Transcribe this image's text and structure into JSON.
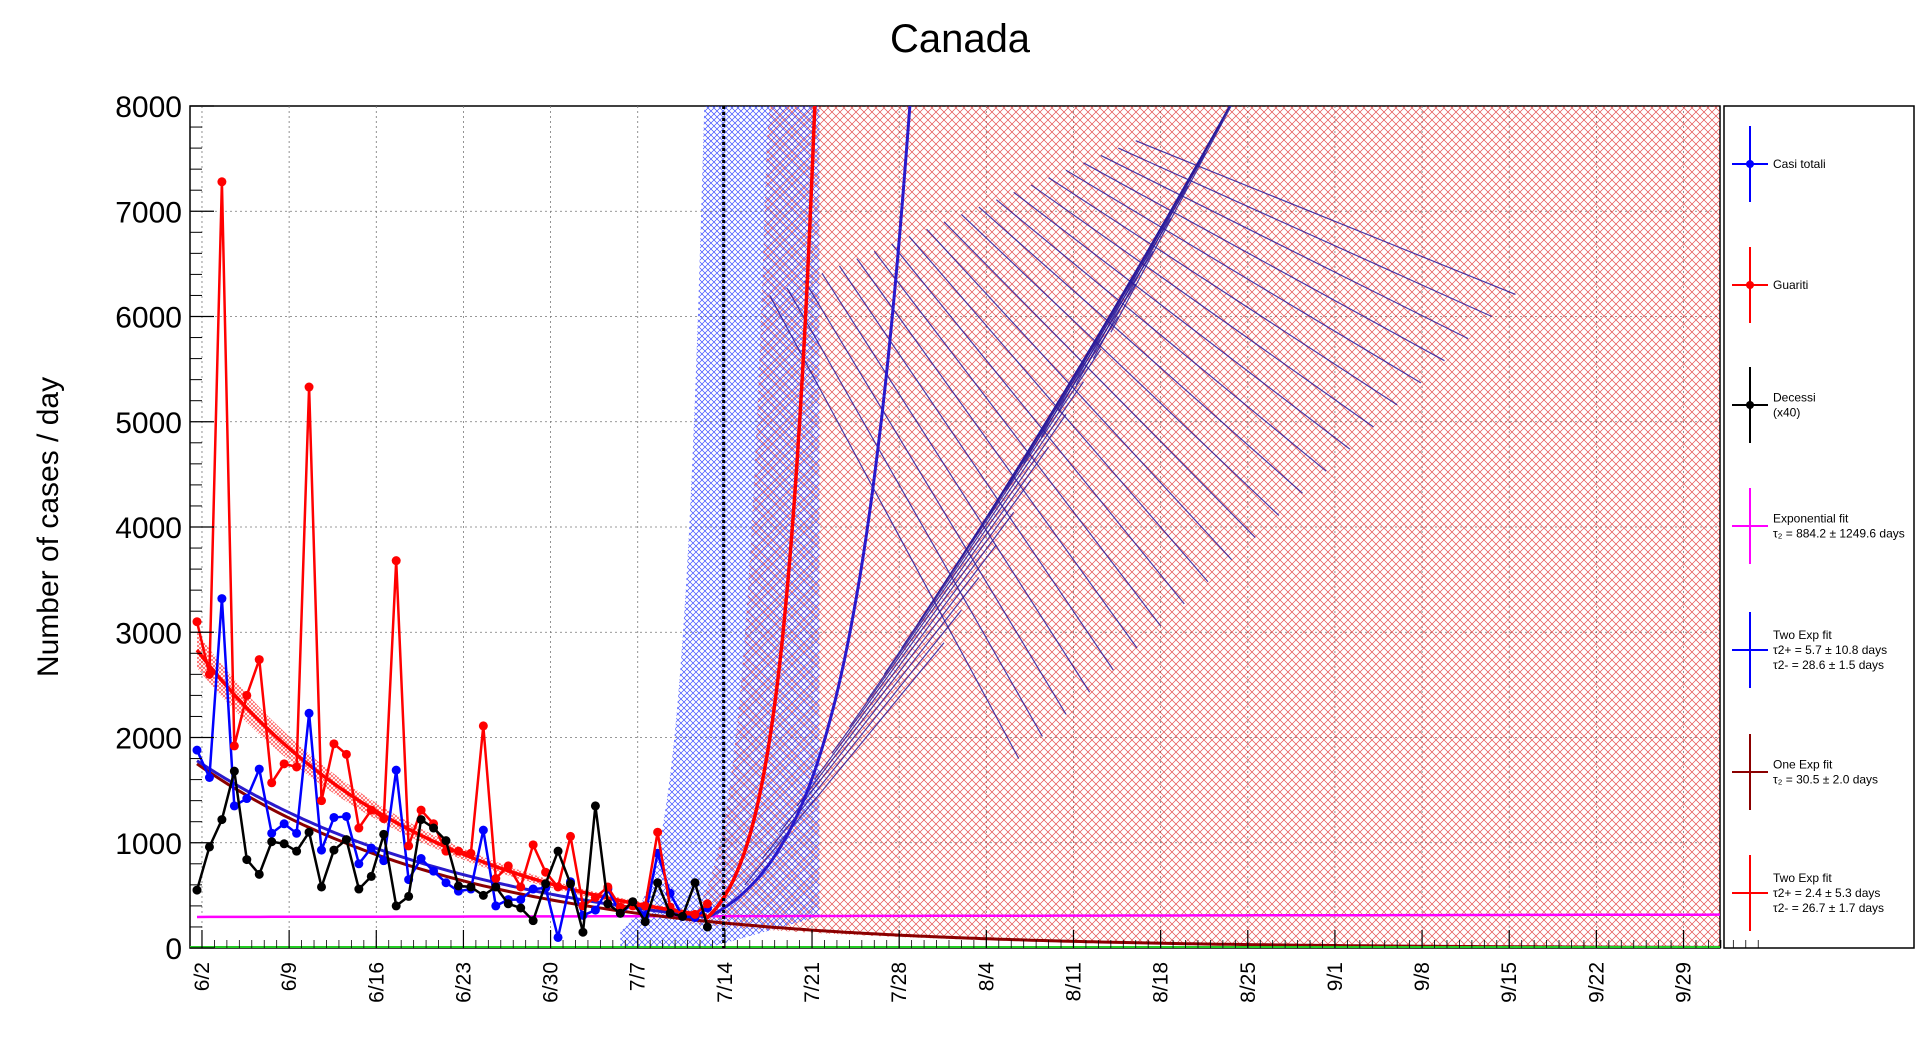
{
  "chart_data": {
    "type": "line",
    "title": "Canada",
    "ylabel": "Number of cases / day",
    "xlabel": "",
    "ylim": [
      0,
      8000
    ],
    "xlim_day": [
      0,
      125
    ],
    "x_tick_labels": [
      {
        "day": 0,
        "label": "6/2"
      },
      {
        "day": 7,
        "label": "6/9"
      },
      {
        "day": 14,
        "label": "6/16"
      },
      {
        "day": 21,
        "label": "6/23"
      },
      {
        "day": 28,
        "label": "6/30"
      },
      {
        "day": 35,
        "label": "7/7"
      },
      {
        "day": 42,
        "label": "7/14"
      },
      {
        "day": 49,
        "label": "7/21"
      },
      {
        "day": 56,
        "label": "7/28"
      },
      {
        "day": 63,
        "label": "8/4"
      },
      {
        "day": 70,
        "label": "8/11"
      },
      {
        "day": 77,
        "label": "8/18"
      },
      {
        "day": 84,
        "label": "8/25"
      },
      {
        "day": 91,
        "label": "9/1"
      },
      {
        "day": 98,
        "label": "9/8"
      },
      {
        "day": 105,
        "label": "9/15"
      },
      {
        "day": 112,
        "label": "9/22"
      },
      {
        "day": 119,
        "label": "9/29"
      }
    ],
    "y_ticks": [
      0,
      1000,
      2000,
      3000,
      4000,
      5000,
      6000,
      7000,
      8000
    ],
    "grid": true,
    "cutoff_day": 42,
    "legend_position": "right",
    "series": [
      {
        "name": "Casi totali",
        "color": "#0000ff",
        "values": [
          1880,
          1620,
          3320,
          1350,
          1420,
          1700,
          1090,
          1180,
          1090,
          2230,
          930,
          1240,
          1250,
          800,
          950,
          830,
          1690,
          650,
          850,
          730,
          620,
          540,
          560,
          1120,
          400,
          460,
          460,
          560,
          570,
          100,
          630,
          310,
          360,
          560,
          330,
          420,
          310,
          900,
          520,
          300,
          290,
          380
        ]
      },
      {
        "name": "Guariti",
        "color": "#ff0000",
        "values": [
          3100,
          2600,
          7280,
          1920,
          2400,
          2740,
          1570,
          1750,
          1720,
          5330,
          1400,
          1940,
          1840,
          1140,
          1310,
          1230,
          3680,
          970,
          1310,
          1180,
          920,
          920,
          900,
          2110,
          660,
          780,
          580,
          980,
          720,
          580,
          1060,
          400,
          480,
          580,
          390,
          400,
          400,
          1100,
          390,
          320,
          320,
          420
        ]
      },
      {
        "name": "Decessi",
        "label_lines": [
          "Decessi",
          "(x40)"
        ],
        "color": "#000000",
        "values": [
          550,
          960,
          1220,
          1680,
          840,
          700,
          1010,
          990,
          920,
          1100,
          580,
          930,
          1030,
          560,
          680,
          1080,
          400,
          490,
          1220,
          1140,
          1020,
          590,
          580,
          500,
          580,
          420,
          380,
          260,
          610,
          920,
          610,
          150,
          1350,
          420,
          330,
          440,
          250,
          620,
          330,
          300,
          620,
          200
        ]
      }
    ],
    "fits": [
      {
        "name": "Exponential fit",
        "color": "#ff00ff",
        "label_lines": [
          "Exponential fit",
          "τ₂ = 884.2  ± 1249.6 days"
        ]
      },
      {
        "name": "Two Exp fit",
        "color": "#0000ff",
        "label_lines": [
          "Two Exp fit",
          "τ2+ = 5.7 ± 10.8 days",
          "τ2- = 28.6 ± 1.5 days"
        ]
      },
      {
        "name": "One Exp fit",
        "color": "#8b0000",
        "label_lines": [
          "One Exp fit",
          "τ₂ = 30.5  ± 2.0 days"
        ]
      },
      {
        "name": "Two Exp fit",
        "color": "#ff0000",
        "label_lines": [
          "Two Exp fit",
          "τ2+ = 2.4 ± 5.3 days",
          "τ2- = 26.7 ± 1.7 days"
        ]
      }
    ]
  }
}
